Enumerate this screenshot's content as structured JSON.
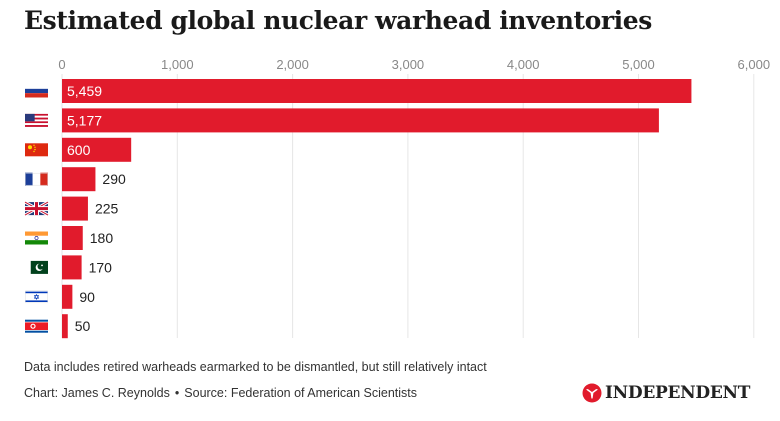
{
  "title": "Estimated global nuclear warhead inventories",
  "footer": {
    "note": "Data includes retired warheads earmarked to be dismantled, but still relatively intact",
    "credit": "Chart: James C. Reynolds",
    "separator": "•",
    "source": "Source: Federation of American Scientists",
    "logo_text": "INDEPENDENT"
  },
  "colors": {
    "bar": "#e11b2c",
    "grid": "#e6e6e6",
    "axis_text": "#888888",
    "label_inside": "#ffffff",
    "label_outside": "#222222"
  },
  "chart_data": {
    "type": "bar",
    "orientation": "horizontal",
    "title": "Estimated global nuclear warhead inventories",
    "xlabel": "",
    "ylabel": "",
    "xlim": [
      0,
      6000
    ],
    "grid": true,
    "ticks": [
      0,
      1000,
      2000,
      3000,
      4000,
      5000,
      6000
    ],
    "tick_labels": [
      "0",
      "1,000",
      "2,000",
      "3,000",
      "4,000",
      "5,000",
      "6,000"
    ],
    "categories": [
      "russia-flag-icon",
      "usa-flag-icon",
      "china-flag-icon",
      "france-flag-icon",
      "uk-flag-icon",
      "india-flag-icon",
      "pakistan-flag-icon",
      "israel-flag-icon",
      "north-korea-flag-icon"
    ],
    "values": [
      5459,
      5177,
      600,
      290,
      225,
      180,
      170,
      90,
      50
    ],
    "value_labels": [
      "5,459",
      "5,177",
      "600",
      "290",
      "225",
      "180",
      "170",
      "90",
      "50"
    ]
  }
}
